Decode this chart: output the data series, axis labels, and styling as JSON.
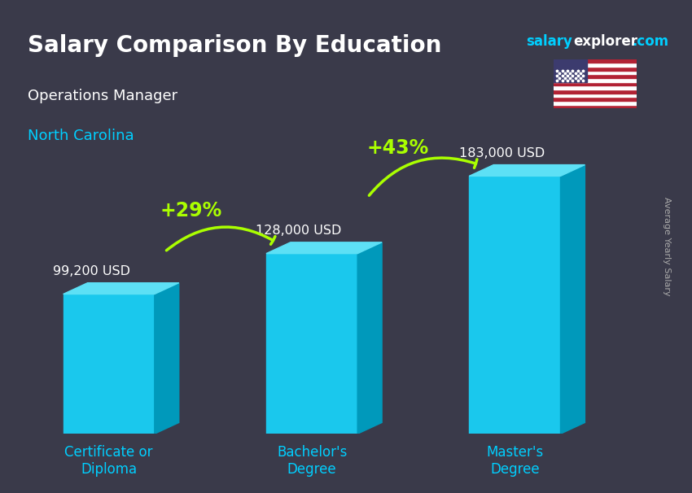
{
  "title": "Salary Comparison By Education",
  "subtitle_job": "Operations Manager",
  "subtitle_location": "North Carolina",
  "ylabel": "Average Yearly Salary",
  "website": "salaryexplorer.com",
  "categories": [
    "Certificate or\nDiploma",
    "Bachelor's\nDegree",
    "Master's\nDegree"
  ],
  "values": [
    99200,
    128000,
    183000
  ],
  "value_labels": [
    "99,200 USD",
    "128,000 USD",
    "183,000 USD"
  ],
  "pct_labels": [
    "+29%",
    "+43%"
  ],
  "bar_color_top": "#00cfff",
  "bar_color_mid": "#009fc2",
  "bar_color_side": "#007a99",
  "bar_color_face": "#00b8e0",
  "background_color": "#3a3a4a",
  "title_color": "#ffffff",
  "subtitle_job_color": "#ffffff",
  "subtitle_loc_color": "#00cfff",
  "value_label_color": "#ffffff",
  "pct_label_color": "#aaff00",
  "arrow_color": "#aaff00",
  "xlabel_color": "#00cfff",
  "website_salary_color": "#00cfff",
  "website_explorer_color": "#ffffff",
  "ylim": [
    0,
    210000
  ],
  "bar_width": 0.45
}
